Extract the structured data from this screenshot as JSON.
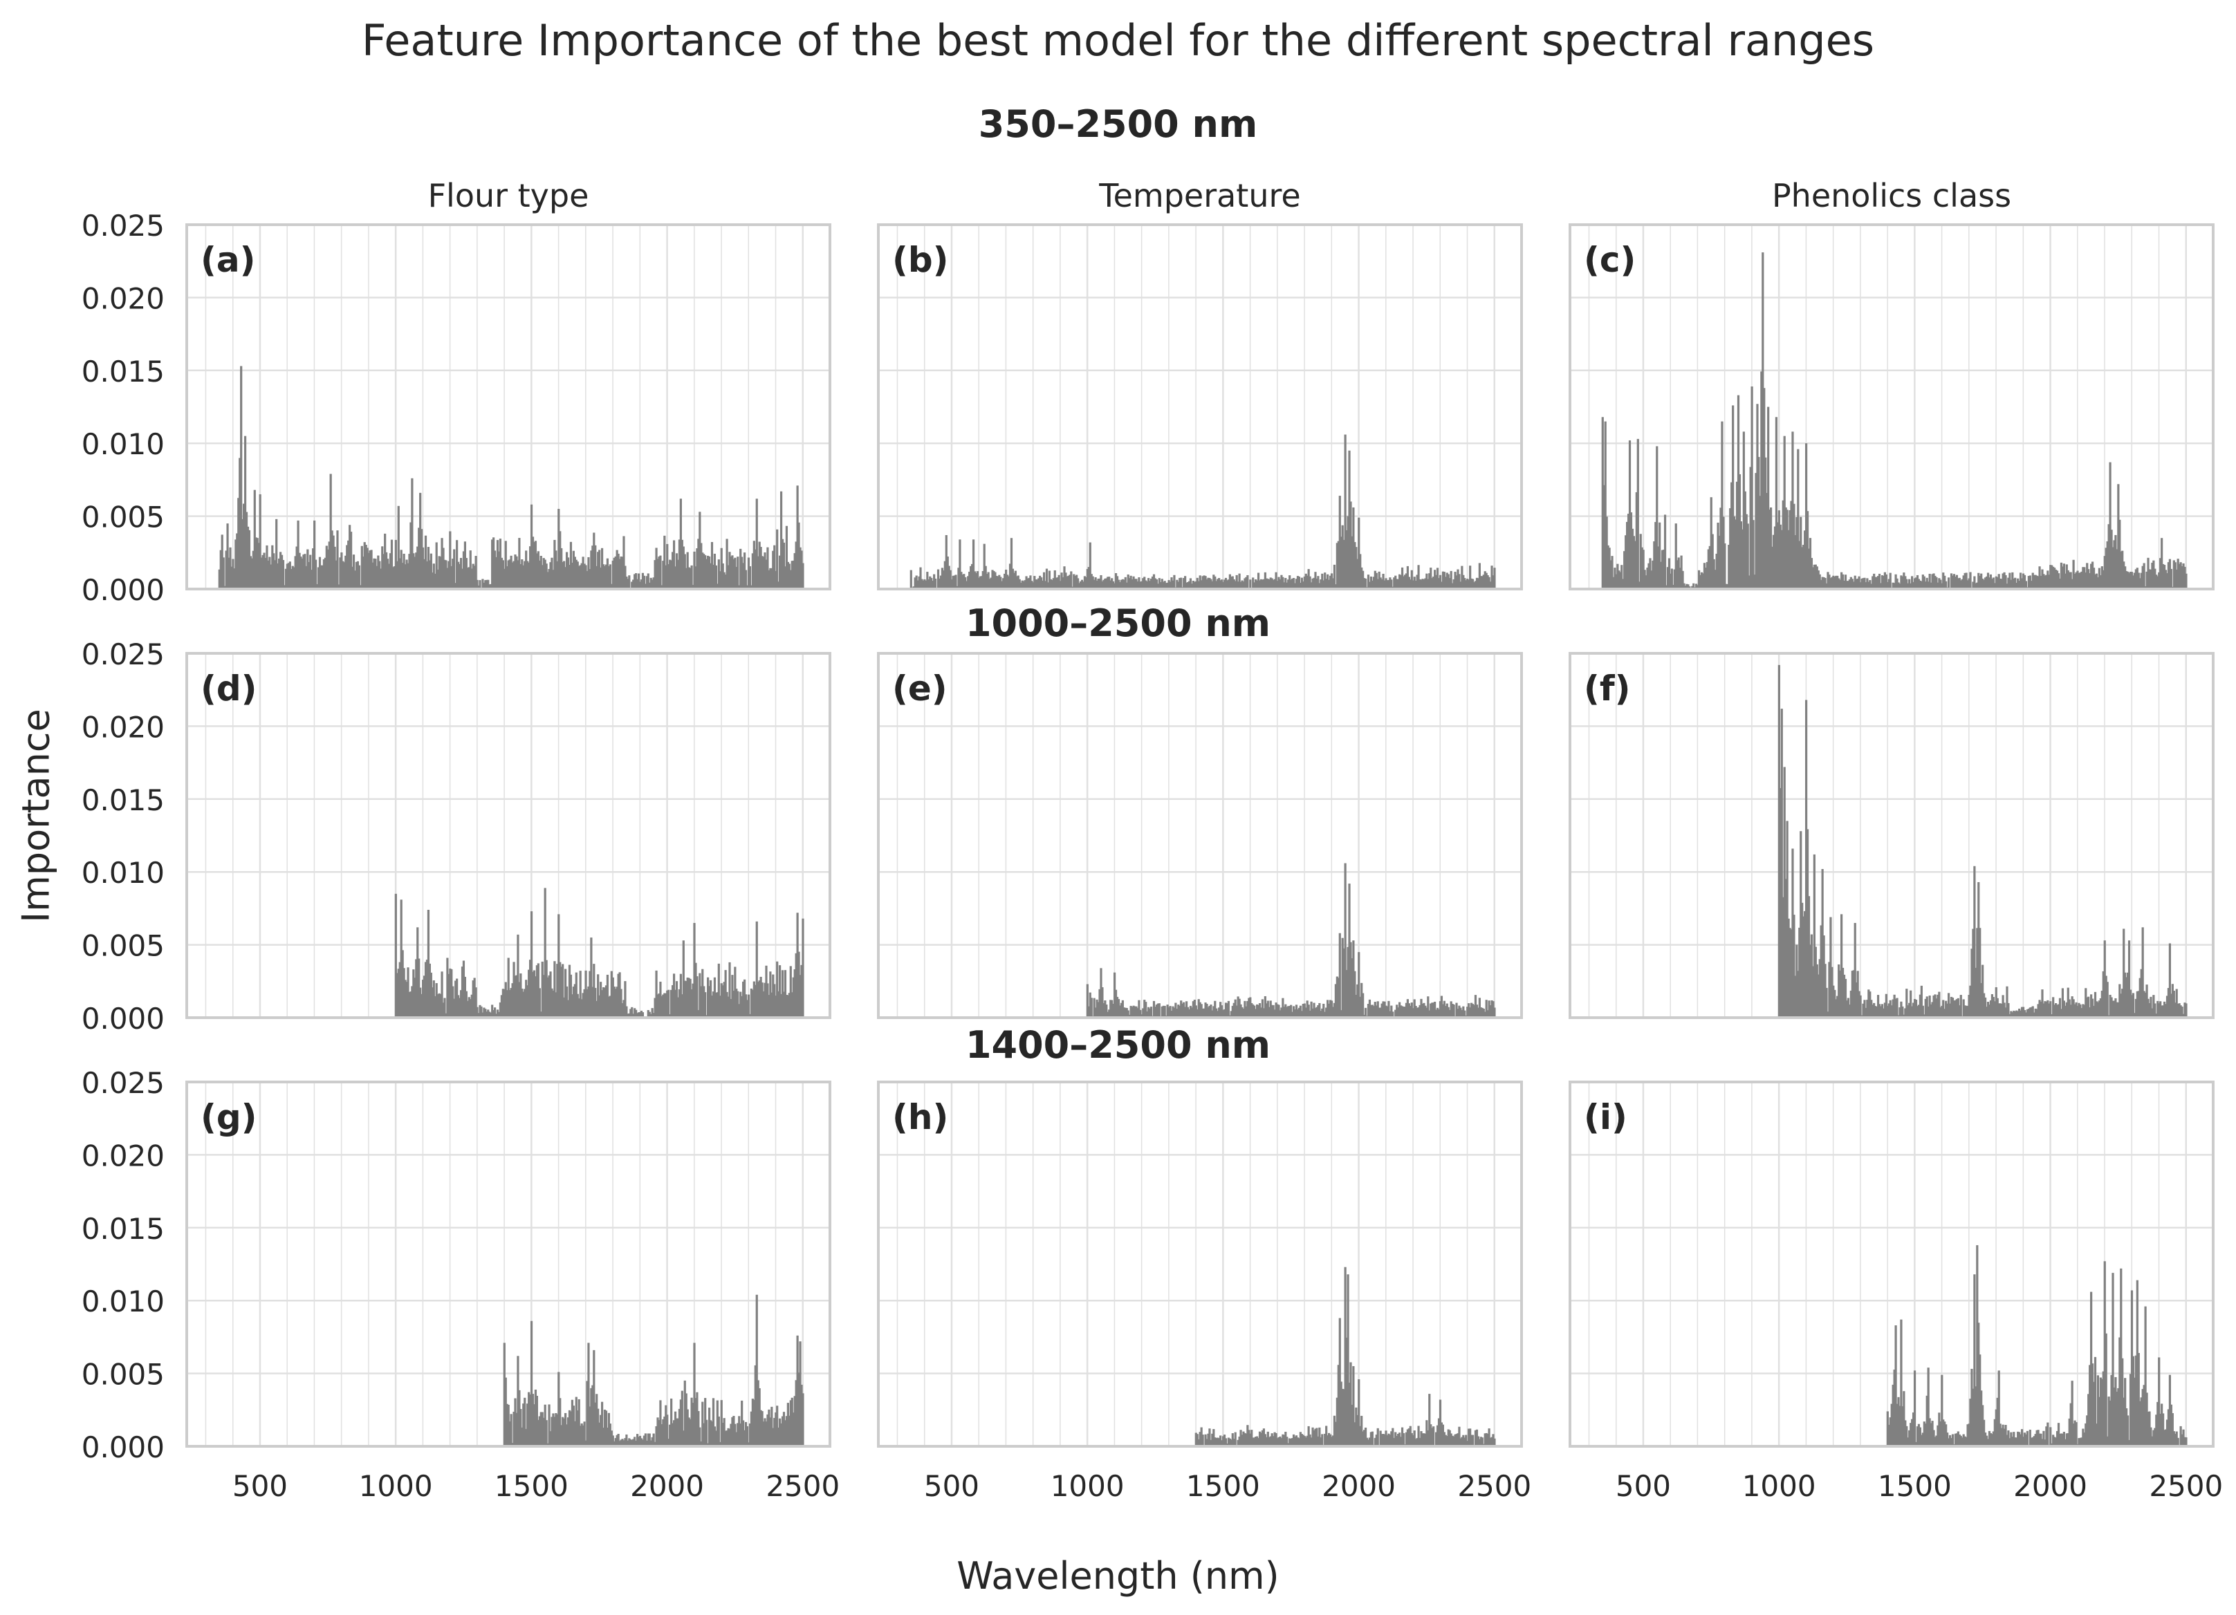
{
  "title": "Feature Importance of the best model for the different spectral ranges",
  "xlabel": "Wavelength (nm)",
  "ylabel": "Importance",
  "row_titles": [
    "350–2500 nm",
    "1000–2500 nm",
    "1400–2500 nm"
  ],
  "col_titles": [
    "Flour type",
    "Temperature",
    "Phenolics class"
  ],
  "colors": {
    "bar": "#808080",
    "grid": "#e0e0e0",
    "spine": "#cccccc",
    "text": "#262626"
  },
  "chart_data": {
    "type": "bar",
    "grid": true,
    "xlim": [
      230,
      2600
    ],
    "ylim": [
      0,
      0.025
    ],
    "xticks": [
      500,
      1000,
      1500,
      2000,
      2500
    ],
    "yticks": [
      0.0,
      0.005,
      0.01,
      0.015,
      0.02,
      0.025
    ],
    "ytick_labels": [
      "0.000",
      "0.005",
      "0.010",
      "0.015",
      "0.020",
      "0.025"
    ],
    "panels": [
      {
        "label": "(a)",
        "row": 0,
        "col": 0,
        "range": [
          350,
          2500
        ],
        "base": 0.0025,
        "amp": 0.0015,
        "features": [
          [
            380,
            0.0045
          ],
          [
            430,
            0.0153
          ],
          [
            445,
            0.0105
          ],
          [
            480,
            0.0068
          ],
          [
            500,
            0.0065
          ],
          [
            560,
            0.0048
          ],
          [
            640,
            0.0047
          ],
          [
            700,
            0.0047
          ],
          [
            760,
            0.0079
          ],
          [
            830,
            0.0044
          ],
          [
            960,
            0.0038
          ],
          [
            1010,
            0.0057
          ],
          [
            1060,
            0.0076
          ],
          [
            1090,
            0.0066
          ],
          [
            1170,
            0.0035
          ],
          [
            1500,
            0.0058
          ],
          [
            1600,
            0.0055
          ],
          [
            2050,
            0.0062
          ],
          [
            2120,
            0.0053
          ],
          [
            2330,
            0.0062
          ],
          [
            2420,
            0.0067
          ],
          [
            2480,
            0.0071
          ]
        ],
        "low": [
          [
            1300,
            1350,
            0.0008
          ],
          [
            1850,
            1950,
            0.0012
          ]
        ]
      },
      {
        "label": "(b)",
        "row": 0,
        "col": 1,
        "range": [
          350,
          2500
        ],
        "base": 0.0009,
        "amp": 0.0009,
        "features": [
          [
            350,
            0.0013
          ],
          [
            480,
            0.0037
          ],
          [
            530,
            0.0034
          ],
          [
            580,
            0.0034
          ],
          [
            620,
            0.0031
          ],
          [
            720,
            0.0035
          ],
          [
            1010,
            0.0032
          ],
          [
            1930,
            0.0064
          ],
          [
            1950,
            0.0106
          ],
          [
            1965,
            0.0095
          ],
          [
            1980,
            0.0056
          ],
          [
            2000,
            0.0049
          ]
        ],
        "low": [
          [
            1000,
            1400,
            0.0012
          ],
          [
            1400,
            1800,
            0.0013
          ]
        ]
      },
      {
        "label": "(c)",
        "row": 0,
        "col": 2,
        "range": [
          350,
          2500
        ],
        "base": 0.0015,
        "amp": 0.0012,
        "features": [
          [
            350,
            0.0118
          ],
          [
            360,
            0.0115
          ],
          [
            450,
            0.0102
          ],
          [
            480,
            0.0103
          ],
          [
            550,
            0.0098
          ],
          [
            580,
            0.0051
          ],
          [
            620,
            0.0045
          ],
          [
            750,
            0.0063
          ],
          [
            790,
            0.0115
          ],
          [
            830,
            0.0126
          ],
          [
            850,
            0.0133
          ],
          [
            870,
            0.0108
          ],
          [
            900,
            0.0139
          ],
          [
            920,
            0.0127
          ],
          [
            940,
            0.0231
          ],
          [
            960,
            0.0125
          ],
          [
            990,
            0.0118
          ],
          [
            1020,
            0.0105
          ],
          [
            1050,
            0.0108
          ],
          [
            1070,
            0.0096
          ],
          [
            1100,
            0.01
          ],
          [
            2220,
            0.0087
          ],
          [
            2250,
            0.0072
          ],
          [
            2410,
            0.0035
          ]
        ],
        "low": [
          [
            1150,
            1950,
            0.0012
          ],
          [
            650,
            700,
            0.0004
          ]
        ]
      },
      {
        "label": "(d)",
        "row": 1,
        "col": 0,
        "range": [
          1000,
          2500
        ],
        "base": 0.0025,
        "amp": 0.0015,
        "features": [
          [
            1000,
            0.0085
          ],
          [
            1020,
            0.0081
          ],
          [
            1080,
            0.0062
          ],
          [
            1120,
            0.0074
          ],
          [
            1450,
            0.0057
          ],
          [
            1500,
            0.0073
          ],
          [
            1550,
            0.0089
          ],
          [
            1600,
            0.0071
          ],
          [
            1720,
            0.0055
          ],
          [
            2060,
            0.0053
          ],
          [
            2100,
            0.0065
          ],
          [
            2330,
            0.0066
          ],
          [
            2480,
            0.0072
          ],
          [
            2500,
            0.0068
          ]
        ],
        "low": [
          [
            1300,
            1380,
            0.0009
          ],
          [
            1850,
            1950,
            0.0008
          ]
        ]
      },
      {
        "label": "(e)",
        "row": 1,
        "col": 1,
        "range": [
          1000,
          2500
        ],
        "base": 0.0009,
        "amp": 0.0009,
        "features": [
          [
            1000,
            0.0023
          ],
          [
            1050,
            0.0034
          ],
          [
            1100,
            0.0031
          ],
          [
            1930,
            0.0058
          ],
          [
            1950,
            0.0106
          ],
          [
            1965,
            0.0092
          ],
          [
            1980,
            0.0053
          ],
          [
            2000,
            0.0045
          ]
        ],
        "low": []
      },
      {
        "label": "(f)",
        "row": 1,
        "col": 2,
        "range": [
          1000,
          2500
        ],
        "base": 0.0012,
        "amp": 0.0012,
        "features": [
          [
            1000,
            0.0242
          ],
          [
            1010,
            0.0212
          ],
          [
            1020,
            0.0172
          ],
          [
            1030,
            0.0135
          ],
          [
            1050,
            0.0116
          ],
          [
            1080,
            0.0128
          ],
          [
            1100,
            0.0218
          ],
          [
            1130,
            0.0112
          ],
          [
            1160,
            0.0102
          ],
          [
            1190,
            0.0069
          ],
          [
            1230,
            0.0071
          ],
          [
            1280,
            0.0065
          ],
          [
            1720,
            0.0104
          ],
          [
            1735,
            0.0093
          ],
          [
            2200,
            0.0053
          ],
          [
            2270,
            0.0061
          ],
          [
            2290,
            0.0053
          ],
          [
            2340,
            0.0062
          ],
          [
            2440,
            0.0051
          ]
        ],
        "low": [
          [
            1850,
            1950,
            0.0008
          ]
        ]
      },
      {
        "label": "(g)",
        "row": 2,
        "col": 0,
        "range": [
          1400,
          2500
        ],
        "base": 0.0022,
        "amp": 0.0016,
        "features": [
          [
            1400,
            0.0071
          ],
          [
            1450,
            0.0062
          ],
          [
            1500,
            0.0086
          ],
          [
            1600,
            0.0051
          ],
          [
            1710,
            0.0071
          ],
          [
            1730,
            0.0066
          ],
          [
            2060,
            0.0072
          ],
          [
            2100,
            0.0071
          ],
          [
            2330,
            0.0104
          ],
          [
            2480,
            0.0076
          ],
          [
            2490,
            0.0072
          ]
        ],
        "low": [
          [
            1800,
            1950,
            0.0009
          ]
        ]
      },
      {
        "label": "(h)",
        "row": 2,
        "col": 1,
        "range": [
          1400,
          2500
        ],
        "base": 0.0009,
        "amp": 0.0008,
        "features": [
          [
            1930,
            0.0088
          ],
          [
            1950,
            0.0123
          ],
          [
            1960,
            0.0118
          ],
          [
            1980,
            0.0055
          ],
          [
            2000,
            0.0046
          ],
          [
            2260,
            0.0036
          ],
          [
            2300,
            0.0032
          ]
        ],
        "low": []
      },
      {
        "label": "(i)",
        "row": 2,
        "col": 2,
        "range": [
          1400,
          2500
        ],
        "base": 0.0009,
        "amp": 0.0009,
        "features": [
          [
            1400,
            0.0024
          ],
          [
            1430,
            0.0083
          ],
          [
            1450,
            0.0087
          ],
          [
            1500,
            0.0052
          ],
          [
            1550,
            0.0054
          ],
          [
            1600,
            0.0049
          ],
          [
            1720,
            0.0118
          ],
          [
            1730,
            0.0138
          ],
          [
            1740,
            0.0063
          ],
          [
            1810,
            0.0052
          ],
          [
            2080,
            0.0045
          ],
          [
            2150,
            0.0106
          ],
          [
            2170,
            0.0104
          ],
          [
            2200,
            0.0127
          ],
          [
            2230,
            0.0119
          ],
          [
            2260,
            0.0122
          ],
          [
            2300,
            0.0107
          ],
          [
            2320,
            0.0114
          ],
          [
            2350,
            0.0096
          ],
          [
            2400,
            0.0061
          ],
          [
            2440,
            0.0049
          ]
        ],
        "low": [
          [
            1850,
            1950,
            0.0015
          ]
        ]
      }
    ]
  }
}
